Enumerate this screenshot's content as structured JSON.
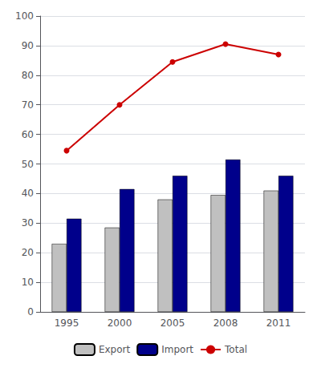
{
  "chart_data": {
    "type": "bar",
    "categories": [
      "1995",
      "2000",
      "2005",
      "2008",
      "2011"
    ],
    "series": [
      {
        "name": "Export",
        "type": "bar",
        "color": "#c0c0c0",
        "values": [
          23,
          28.5,
          38,
          39.5,
          41
        ]
      },
      {
        "name": "Import",
        "type": "bar",
        "color": "#00008b",
        "values": [
          31.5,
          41.5,
          46,
          51.5,
          46
        ]
      },
      {
        "name": "Total",
        "type": "line",
        "color": "#cc0000",
        "marker": "circle",
        "values": [
          54.5,
          70,
          84.5,
          90.5,
          87
        ]
      }
    ],
    "ylim": [
      0,
      100
    ],
    "yticks": [
      0,
      10,
      20,
      30,
      40,
      50,
      60,
      70,
      80,
      90,
      100
    ],
    "grid": true,
    "legend": "bottom"
  }
}
